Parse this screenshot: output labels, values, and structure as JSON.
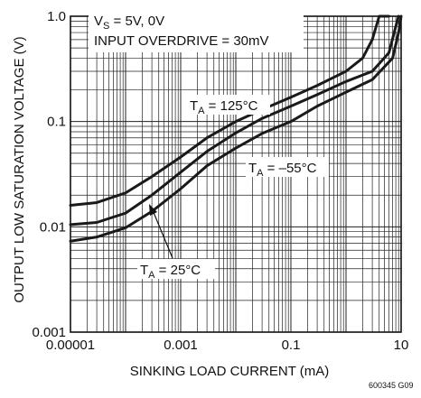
{
  "chart_data": {
    "type": "line",
    "xscale": "log",
    "yscale": "log",
    "xlim": [
      1e-05,
      10
    ],
    "ylim": [
      0.001,
      1
    ],
    "grid": true,
    "xlabel": "SINKING LOAD CURRENT (mA)",
    "ylabel": "OUTPUT LOW SATURATION VOLTAGE (V)",
    "xticks": [
      {
        "value": 1e-05,
        "label": "0.00001"
      },
      {
        "value": 0.001,
        "label": "0.001"
      },
      {
        "value": 0.1,
        "label": "0.1"
      },
      {
        "value": 10,
        "label": "10"
      }
    ],
    "yticks": [
      {
        "value": 0.001,
        "label": "0.001"
      },
      {
        "value": 0.01,
        "label": "0.01"
      },
      {
        "value": 0.1,
        "label": "0.1"
      },
      {
        "value": 1,
        "label": "1.0"
      }
    ],
    "conditions": {
      "supply_prefix": "V",
      "supply_sub": "S",
      "supply_value": " = 5V, 0V",
      "overdrive": "INPUT OVERDRIVE = 30mV"
    },
    "series": [
      {
        "name_prefix": "T",
        "name_sub": "A",
        "name_value": " = 125°C",
        "x": [
          1e-05,
          3e-05,
          0.0001,
          0.0003,
          0.001,
          0.003,
          0.01,
          0.03,
          0.1,
          0.3,
          1,
          2,
          3,
          4,
          5,
          6
        ],
        "y": [
          0.016,
          0.017,
          0.021,
          0.03,
          0.046,
          0.07,
          0.1,
          0.13,
          0.17,
          0.22,
          0.3,
          0.4,
          0.6,
          1.0,
          1.0,
          1.0
        ]
      },
      {
        "name_prefix": "T",
        "name_sub": "A",
        "name_value": " = 25°C",
        "x": [
          1e-05,
          3e-05,
          0.0001,
          0.0003,
          0.001,
          0.003,
          0.01,
          0.03,
          0.1,
          0.3,
          1,
          3,
          6,
          8,
          9
        ],
        "y": [
          0.0105,
          0.011,
          0.0135,
          0.02,
          0.033,
          0.052,
          0.078,
          0.107,
          0.14,
          0.18,
          0.24,
          0.3,
          0.45,
          0.8,
          1.0
        ]
      },
      {
        "name_prefix": "T",
        "name_sub": "A",
        "name_value": " = –55°C",
        "x": [
          1e-05,
          3e-05,
          0.0001,
          0.0003,
          0.001,
          0.003,
          0.01,
          0.03,
          0.1,
          0.3,
          1,
          3,
          7,
          9,
          10
        ],
        "y": [
          0.0073,
          0.008,
          0.0098,
          0.014,
          0.023,
          0.038,
          0.056,
          0.077,
          0.1,
          0.14,
          0.19,
          0.25,
          0.4,
          0.7,
          1.0
        ]
      }
    ],
    "figure_id": "600345 G09"
  }
}
